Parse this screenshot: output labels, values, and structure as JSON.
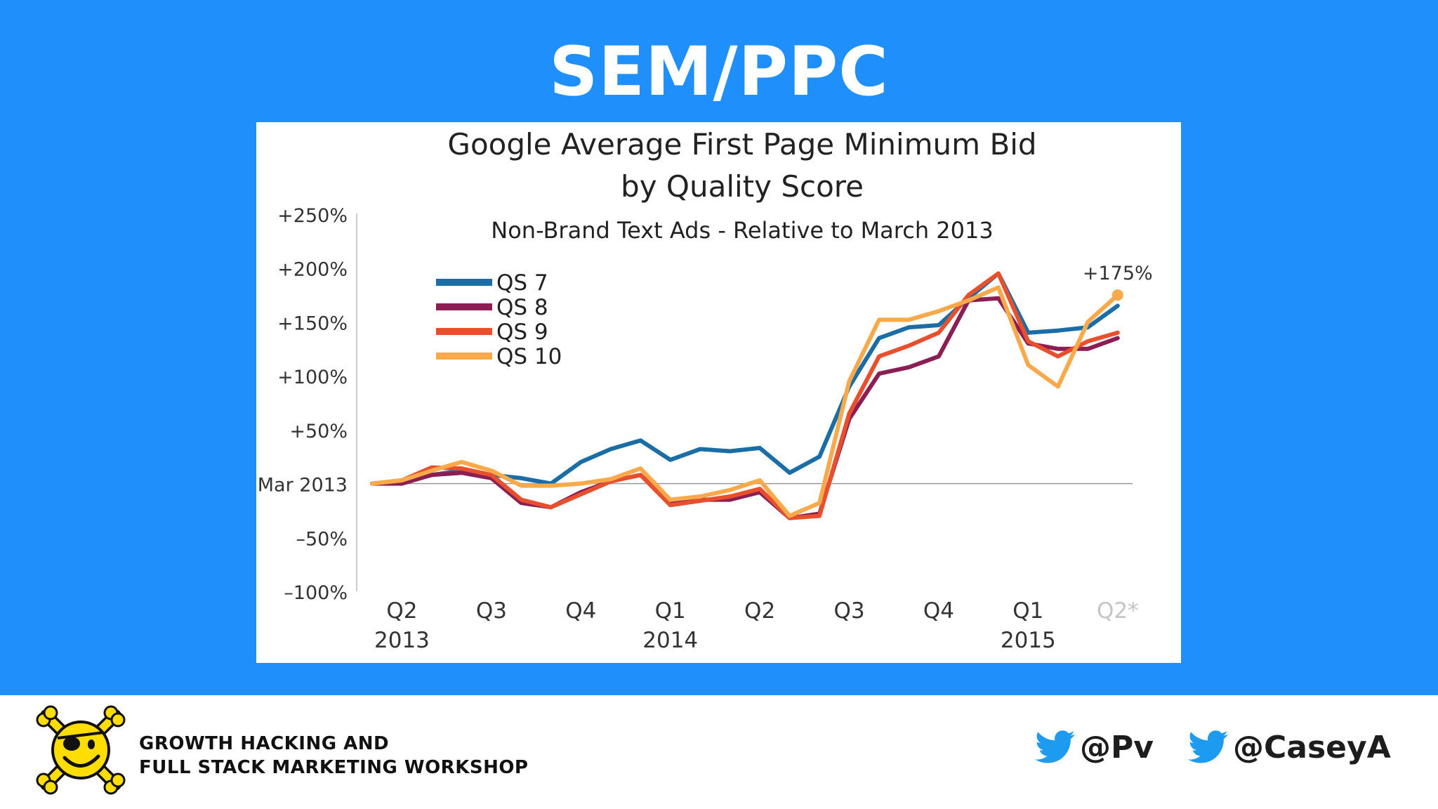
{
  "slide": {
    "title": "SEM/PPC"
  },
  "chart_data": {
    "type": "line",
    "title": "Google Average First Page Minimum Bid",
    "title_line2": "by Quality Score",
    "subtitle": "Non-Brand Text Ads - Relative to March 2013",
    "ylim": [
      -100,
      250
    ],
    "yticks": [
      {
        "value": 250,
        "label": "+250%"
      },
      {
        "value": 200,
        "label": "+200%"
      },
      {
        "value": 150,
        "label": "+150%"
      },
      {
        "value": 100,
        "label": "+100%"
      },
      {
        "value": 50,
        "label": "+50%"
      },
      {
        "value": 0,
        "label": "Mar 2013"
      },
      {
        "value": -50,
        "label": "–50%"
      },
      {
        "value": -100,
        "label": "–100%"
      }
    ],
    "xticks": [
      {
        "index": 2,
        "label": "Q2",
        "year": "2013"
      },
      {
        "index": 8,
        "label": "Q3",
        "year": ""
      },
      {
        "index": 14,
        "label": "Q4",
        "year": ""
      },
      {
        "index": 20,
        "label": "Q1",
        "year": "2014"
      },
      {
        "index": 26,
        "label": "Q2",
        "year": ""
      },
      {
        "index": 32,
        "label": "Q3",
        "year": ""
      },
      {
        "index": 38,
        "label": "Q4",
        "year": ""
      },
      {
        "index": 44,
        "label": "Q1",
        "year": "2015"
      },
      {
        "index": 50,
        "label": "Q2*",
        "year": "",
        "muted": true
      }
    ],
    "x_count": 52,
    "grid": false,
    "legend_position": "top-left",
    "series": [
      {
        "name": "QS 7",
        "color": "#1a6ea5",
        "points": [
          [
            0,
            0
          ],
          [
            2,
            1
          ],
          [
            4,
            8
          ],
          [
            6,
            12
          ],
          [
            8,
            8
          ],
          [
            10,
            5
          ],
          [
            12,
            0
          ],
          [
            14,
            20
          ],
          [
            16,
            32
          ],
          [
            18,
            40
          ],
          [
            20,
            22
          ],
          [
            22,
            32
          ],
          [
            24,
            30
          ],
          [
            26,
            33
          ],
          [
            28,
            10
          ],
          [
            30,
            25
          ],
          [
            32,
            90
          ],
          [
            34,
            135
          ],
          [
            36,
            145
          ],
          [
            38,
            147
          ],
          [
            40,
            172
          ],
          [
            42,
            195
          ],
          [
            44,
            140
          ],
          [
            46,
            142
          ],
          [
            48,
            145
          ],
          [
            50,
            165
          ]
        ]
      },
      {
        "name": "QS 8",
        "color": "#8b1f54",
        "points": [
          [
            0,
            0
          ],
          [
            2,
            0
          ],
          [
            4,
            8
          ],
          [
            6,
            10
          ],
          [
            8,
            5
          ],
          [
            10,
            -18
          ],
          [
            12,
            -22
          ],
          [
            14,
            -8
          ],
          [
            16,
            2
          ],
          [
            18,
            8
          ],
          [
            20,
            -18
          ],
          [
            22,
            -15
          ],
          [
            24,
            -15
          ],
          [
            26,
            -8
          ],
          [
            28,
            -32
          ],
          [
            30,
            -28
          ],
          [
            32,
            60
          ],
          [
            34,
            102
          ],
          [
            36,
            108
          ],
          [
            38,
            118
          ],
          [
            40,
            170
          ],
          [
            42,
            172
          ],
          [
            44,
            130
          ],
          [
            46,
            125
          ],
          [
            48,
            125
          ],
          [
            50,
            135
          ]
        ]
      },
      {
        "name": "QS 9",
        "color": "#e8502d",
        "points": [
          [
            0,
            0
          ],
          [
            2,
            3
          ],
          [
            4,
            15
          ],
          [
            6,
            14
          ],
          [
            8,
            8
          ],
          [
            10,
            -15
          ],
          [
            12,
            -22
          ],
          [
            14,
            -10
          ],
          [
            16,
            2
          ],
          [
            18,
            8
          ],
          [
            20,
            -20
          ],
          [
            22,
            -16
          ],
          [
            24,
            -12
          ],
          [
            26,
            -5
          ],
          [
            28,
            -32
          ],
          [
            30,
            -30
          ],
          [
            32,
            65
          ],
          [
            34,
            118
          ],
          [
            36,
            128
          ],
          [
            38,
            140
          ],
          [
            40,
            175
          ],
          [
            42,
            195
          ],
          [
            44,
            132
          ],
          [
            46,
            118
          ],
          [
            48,
            132
          ],
          [
            50,
            140
          ]
        ]
      },
      {
        "name": "QS 10",
        "color": "#f8a94a",
        "points": [
          [
            0,
            0
          ],
          [
            2,
            3
          ],
          [
            4,
            12
          ],
          [
            6,
            20
          ],
          [
            8,
            12
          ],
          [
            10,
            -2
          ],
          [
            12,
            -2
          ],
          [
            14,
            0
          ],
          [
            16,
            4
          ],
          [
            18,
            14
          ],
          [
            20,
            -15
          ],
          [
            22,
            -12
          ],
          [
            24,
            -6
          ],
          [
            26,
            3
          ],
          [
            28,
            -30
          ],
          [
            30,
            -18
          ],
          [
            32,
            95
          ],
          [
            34,
            152
          ],
          [
            36,
            152
          ],
          [
            38,
            160
          ],
          [
            40,
            170
          ],
          [
            42,
            182
          ],
          [
            44,
            110
          ],
          [
            46,
            90
          ],
          [
            48,
            150
          ],
          [
            50,
            175
          ]
        ]
      }
    ],
    "annotation": {
      "text": "+175%",
      "series": "QS 10",
      "x": 50,
      "y": 175
    }
  },
  "footer": {
    "workshop_line1": "GROWTH HACKING AND",
    "workshop_line2": "FULL STACK MARKETING WORKSHOP",
    "handle1": "@Pv",
    "handle2": "@CaseyA",
    "bird_icon_color": "#1d9bf0",
    "logo_icon": "pirate-smiley-crossbones-icon"
  }
}
